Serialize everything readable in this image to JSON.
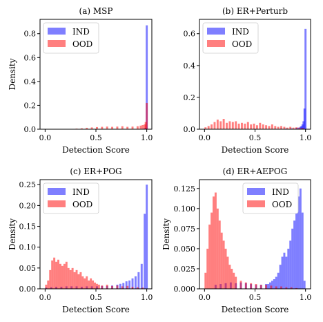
{
  "colors": {
    "ind": "#0000ff",
    "ood": "#ff0000"
  },
  "chart_data": [
    {
      "type": "histogram",
      "title": "(a) MSP",
      "xlabel": "Detection Score",
      "ylabel": "Density",
      "xlim": [
        -0.05,
        1.05
      ],
      "ylim": [
        0,
        0.92
      ],
      "xticks": [
        0,
        0.5,
        1
      ],
      "xtick_labels": [
        "0.0",
        "0.5",
        "1.0"
      ],
      "yticks": [
        0,
        0.2,
        0.4,
        0.6,
        0.8
      ],
      "ytick_labels": [
        "0.0",
        "0.2",
        "0.4",
        "0.6",
        "0.8"
      ],
      "legend_position": "top-left",
      "series": [
        {
          "name": "IND",
          "x": [
            0.95,
            0.96,
            0.97,
            0.98,
            0.99
          ],
          "values": [
            0.003,
            0.004,
            0.006,
            0.012,
            0.87
          ]
        },
        {
          "name": "OOD",
          "x": [
            0.3,
            0.35,
            0.4,
            0.45,
            0.5,
            0.55,
            0.6,
            0.65,
            0.7,
            0.75,
            0.8,
            0.85,
            0.9,
            0.93,
            0.95,
            0.97,
            0.98,
            0.99
          ],
          "values": [
            0.005,
            0.008,
            0.012,
            0.015,
            0.018,
            0.02,
            0.022,
            0.02,
            0.022,
            0.025,
            0.02,
            0.022,
            0.025,
            0.03,
            0.035,
            0.04,
            0.06,
            0.22
          ]
        }
      ]
    },
    {
      "type": "histogram",
      "title": "(b) ER+Perturb",
      "xlabel": "Detection Score",
      "ylabel": "",
      "xlim": [
        -0.05,
        1.05
      ],
      "ylim": [
        0,
        0.69
      ],
      "xticks": [
        0,
        0.5,
        1
      ],
      "xtick_labels": [
        "0.0",
        "0.5",
        "1.0"
      ],
      "yticks": [
        0,
        0.2,
        0.4,
        0.6
      ],
      "ytick_labels": [
        "0.0",
        "0.2",
        "0.4",
        "0.6"
      ],
      "legend_position": "top-left",
      "series": [
        {
          "name": "IND",
          "x": [
            0.7,
            0.75,
            0.8,
            0.85,
            0.9,
            0.92,
            0.94,
            0.95,
            0.96,
            0.97,
            0.98,
            0.99
          ],
          "values": [
            0.002,
            0.003,
            0.004,
            0.005,
            0.008,
            0.01,
            0.015,
            0.02,
            0.03,
            0.05,
            0.13,
            0.63
          ]
        },
        {
          "name": "OOD",
          "x": [
            0.0,
            0.03,
            0.06,
            0.09,
            0.12,
            0.15,
            0.18,
            0.21,
            0.24,
            0.27,
            0.3,
            0.33,
            0.36,
            0.39,
            0.42,
            0.45,
            0.48,
            0.51,
            0.54,
            0.57,
            0.6,
            0.63,
            0.66,
            0.69,
            0.72,
            0.75,
            0.78,
            0.81,
            0.84,
            0.87,
            0.9,
            0.93,
            0.96
          ],
          "values": [
            0.012,
            0.02,
            0.03,
            0.045,
            0.06,
            0.05,
            0.065,
            0.04,
            0.05,
            0.045,
            0.05,
            0.035,
            0.04,
            0.035,
            0.045,
            0.03,
            0.035,
            0.025,
            0.04,
            0.03,
            0.025,
            0.02,
            0.03,
            0.02,
            0.015,
            0.02,
            0.015,
            0.01,
            0.015,
            0.01,
            0.012,
            0.01,
            0.008
          ]
        }
      ]
    },
    {
      "type": "histogram",
      "title": "(c) ER+POG",
      "xlabel": "Detection Score",
      "ylabel": "Density",
      "xlim": [
        -0.05,
        1.05
      ],
      "ylim": [
        0,
        0.262
      ],
      "xticks": [
        0,
        0.5,
        1
      ],
      "xtick_labels": [
        "0.0",
        "0.5",
        "1.0"
      ],
      "yticks": [
        0,
        0.05,
        0.1,
        0.15,
        0.2,
        0.25
      ],
      "ytick_labels": [
        "0.00",
        "0.05",
        "0.10",
        "0.15",
        "0.20",
        "0.25"
      ],
      "legend_position": "top-left",
      "series": [
        {
          "name": "IND",
          "x": [
            0.0,
            0.05,
            0.1,
            0.15,
            0.2,
            0.25,
            0.3,
            0.35,
            0.4,
            0.45,
            0.5,
            0.55,
            0.6,
            0.65,
            0.7,
            0.73,
            0.76,
            0.79,
            0.82,
            0.85,
            0.88,
            0.91,
            0.94,
            0.97,
            0.99
          ],
          "values": [
            0.003,
            0.004,
            0.005,
            0.005,
            0.006,
            0.006,
            0.006,
            0.005,
            0.006,
            0.006,
            0.006,
            0.007,
            0.007,
            0.008,
            0.01,
            0.012,
            0.014,
            0.018,
            0.02,
            0.025,
            0.03,
            0.04,
            0.06,
            0.18,
            0.25
          ]
        },
        {
          "name": "OOD",
          "x": [
            0.0,
            0.02,
            0.04,
            0.06,
            0.08,
            0.1,
            0.12,
            0.14,
            0.16,
            0.18,
            0.2,
            0.22,
            0.24,
            0.26,
            0.28,
            0.3,
            0.32,
            0.34,
            0.36,
            0.38,
            0.4,
            0.42,
            0.44,
            0.46,
            0.48,
            0.5,
            0.52,
            0.55,
            0.6,
            0.65,
            0.7,
            0.75,
            0.8,
            0.85,
            0.9,
            0.95
          ],
          "values": [
            0.01,
            0.02,
            0.045,
            0.068,
            0.075,
            0.065,
            0.07,
            0.06,
            0.055,
            0.06,
            0.065,
            0.05,
            0.045,
            0.05,
            0.04,
            0.045,
            0.035,
            0.04,
            0.03,
            0.025,
            0.03,
            0.02,
            0.025,
            0.02,
            0.015,
            0.012,
            0.01,
            0.008,
            0.01,
            0.007,
            0.008,
            0.006,
            0.007,
            0.005,
            0.004,
            0.003
          ]
        }
      ]
    },
    {
      "type": "histogram",
      "title": "(d) ER+AEPOG",
      "xlabel": "Detection Score",
      "ylabel": "Density",
      "xlim": [
        -0.05,
        1.05
      ],
      "ylim": [
        0,
        0.136
      ],
      "xticks": [
        0,
        0.5,
        1
      ],
      "xtick_labels": [
        "0.0",
        "0.5",
        "1.0"
      ],
      "yticks": [
        0,
        0.025,
        0.05,
        0.075,
        0.1,
        0.125
      ],
      "ytick_labels": [
        "0.000",
        "0.025",
        "0.050",
        "0.075",
        "0.100",
        "0.125"
      ],
      "legend_position": "top-right",
      "series": [
        {
          "name": "IND",
          "x": [
            0.1,
            0.15,
            0.2,
            0.25,
            0.3,
            0.35,
            0.4,
            0.45,
            0.5,
            0.55,
            0.6,
            0.62,
            0.64,
            0.66,
            0.68,
            0.7,
            0.72,
            0.74,
            0.76,
            0.78,
            0.8,
            0.82,
            0.84,
            0.86,
            0.88,
            0.9,
            0.92,
            0.94,
            0.96,
            0.98
          ],
          "values": [
            0.005,
            0.006,
            0.007,
            0.008,
            0.007,
            0.008,
            0.007,
            0.006,
            0.005,
            0.005,
            0.006,
            0.006,
            0.008,
            0.01,
            0.012,
            0.015,
            0.02,
            0.03,
            0.04,
            0.045,
            0.04,
            0.05,
            0.06,
            0.075,
            0.085,
            0.1,
            0.115,
            0.125,
            0.095,
            0.01
          ]
        },
        {
          "name": "OOD",
          "x": [
            0.0,
            0.02,
            0.04,
            0.06,
            0.08,
            0.1,
            0.12,
            0.14,
            0.16,
            0.18,
            0.2,
            0.22,
            0.24,
            0.26,
            0.28,
            0.3,
            0.35,
            0.4,
            0.45,
            0.5,
            0.55,
            0.6,
            0.65,
            0.7,
            0.75,
            0.8,
            0.85,
            0.9
          ],
          "values": [
            0.02,
            0.05,
            0.08,
            0.095,
            0.115,
            0.12,
            0.1,
            0.085,
            0.07,
            0.06,
            0.05,
            0.04,
            0.03,
            0.025,
            0.02,
            0.015,
            0.01,
            0.008,
            0.007,
            0.006,
            0.005,
            0.005,
            0.004,
            0.003,
            0.003,
            0.002,
            0.002,
            0.001
          ]
        }
      ]
    }
  ]
}
